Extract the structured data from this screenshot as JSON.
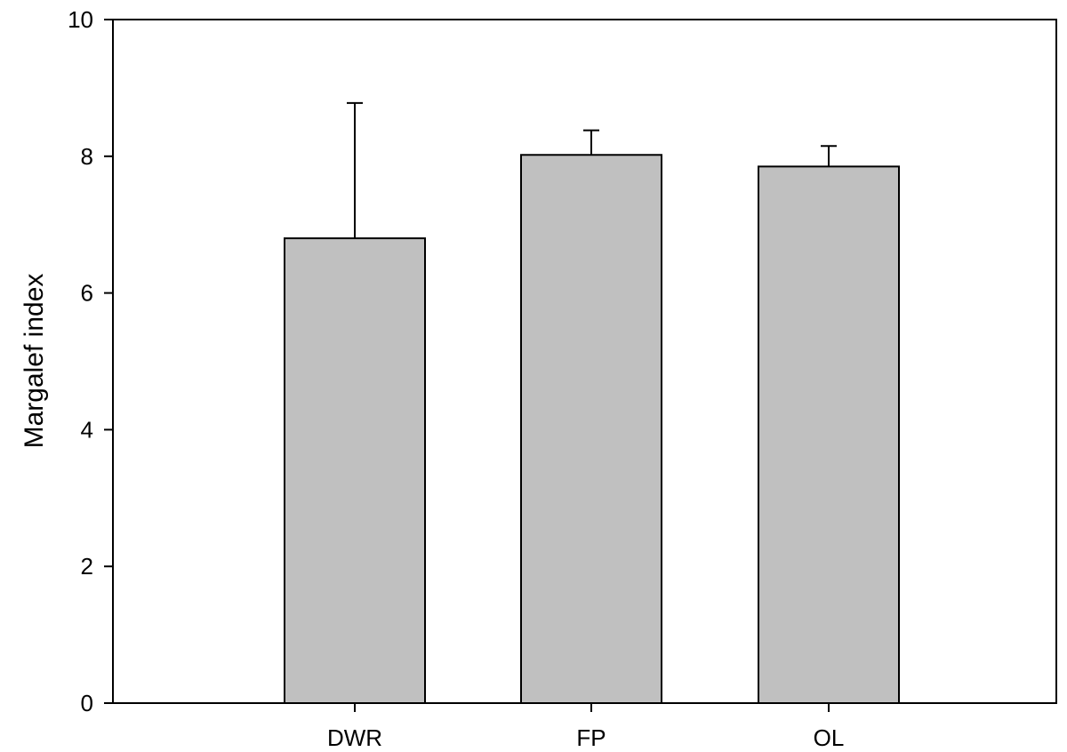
{
  "chart_data": {
    "type": "bar",
    "title": "",
    "xlabel": "",
    "ylabel": "Margalef index",
    "categories": [
      "DWR",
      "FP",
      "OL"
    ],
    "values": [
      6.8,
      8.02,
      7.85
    ],
    "error_upper": [
      1.98,
      0.36,
      0.3
    ],
    "ylim": [
      0,
      10
    ],
    "yticks": [
      0,
      2,
      4,
      6,
      8,
      10
    ],
    "grid": false,
    "legend": "none",
    "bar_color": "#c0c0c0",
    "edge_color": "#000000"
  }
}
